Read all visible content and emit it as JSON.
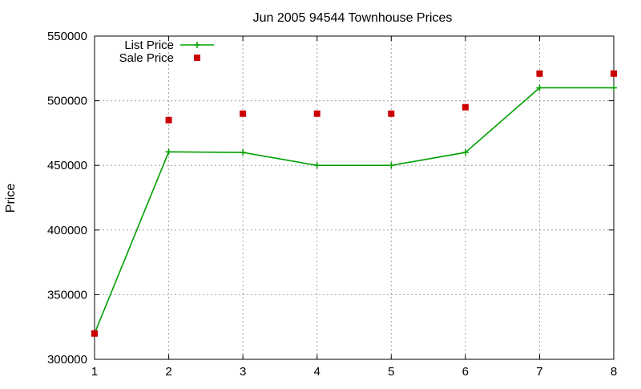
{
  "chart_data": {
    "type": "line",
    "title": "Jun 2005 94544 Townhouse Prices",
    "xlabel": "",
    "ylabel": "Price",
    "x": [
      1,
      2,
      3,
      4,
      5,
      6,
      7,
      8
    ],
    "xlim": [
      1,
      8
    ],
    "ylim": [
      300000,
      550000
    ],
    "xticks": [
      "1",
      "2",
      "3",
      "4",
      "5",
      "6",
      "7",
      "8"
    ],
    "yticks": [
      "300000",
      "350000",
      "400000",
      "450000",
      "500000",
      "550000"
    ],
    "grid": true,
    "legend_position": "top-left",
    "series": [
      {
        "name": "List Price",
        "style": "line-with-plus-markers",
        "color": "#00a000",
        "values": [
          320000,
          460500,
          460000,
          450000,
          450000,
          460000,
          510000,
          510000
        ]
      },
      {
        "name": "Sale Price",
        "style": "square-markers",
        "color": "#cc0000",
        "values": [
          320000,
          485000,
          490000,
          490000,
          490000,
          495000,
          521000,
          521000
        ]
      }
    ]
  }
}
